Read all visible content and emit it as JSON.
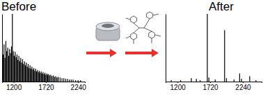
{
  "chart_data": [
    {
      "type": "bar",
      "title": "Before",
      "color": "#000000",
      "tick_labels": "x",
      "x": [
        1030,
        1045,
        1060,
        1075,
        1090,
        1105,
        1120,
        1135,
        1150,
        1165,
        1180,
        1195,
        1210,
        1225,
        1240,
        1255,
        1270,
        1285,
        1300,
        1315,
        1330,
        1345,
        1360,
        1375,
        1390,
        1405,
        1420,
        1435,
        1450,
        1465,
        1480,
        1495,
        1510,
        1525,
        1540,
        1555,
        1570,
        1585,
        1600,
        1615,
        1630,
        1645,
        1660,
        1675,
        1690,
        1705,
        1720,
        1735,
        1750,
        1765,
        1780,
        1800,
        1820,
        1840,
        1860,
        1880,
        1900,
        1920,
        1950,
        1980,
        2010,
        2040,
        2070,
        2100,
        2130,
        2160,
        2200,
        2240,
        2280
      ],
      "values": [
        40,
        55,
        35,
        60,
        45,
        50,
        38,
        48,
        42,
        52,
        100,
        45,
        38,
        44,
        36,
        40,
        32,
        38,
        30,
        35,
        28,
        33,
        26,
        30,
        24,
        28,
        22,
        26,
        20,
        24,
        19,
        22,
        18,
        20,
        16,
        19,
        15,
        17,
        14,
        16,
        13,
        15,
        12,
        14,
        11,
        13,
        10,
        12,
        10,
        11,
        9,
        10,
        8,
        9,
        7,
        8,
        6,
        7,
        6,
        5,
        5,
        4,
        4,
        3,
        3,
        3,
        2,
        2,
        2
      ],
      "xlim": [
        1014,
        2350
      ],
      "xticks": [
        1200,
        1720,
        2240
      ],
      "ylim": [
        0,
        100
      ]
    },
    {
      "type": "bar",
      "title": "After",
      "color": "#000000",
      "tick_labels": "x",
      "x": [
        1100,
        1250,
        1420,
        1500,
        1560,
        1675,
        1700,
        1800,
        1950,
        1980,
        2100,
        2190,
        2220,
        2350,
        2450
      ],
      "values": [
        2,
        2,
        5,
        4,
        2,
        100,
        6,
        3,
        76,
        5,
        3,
        12,
        4,
        8,
        2
      ],
      "xlim": [
        1010,
        2540
      ],
      "xticks": [
        1200,
        1720,
        2240
      ],
      "ylim": [
        0,
        100
      ]
    }
  ]
}
